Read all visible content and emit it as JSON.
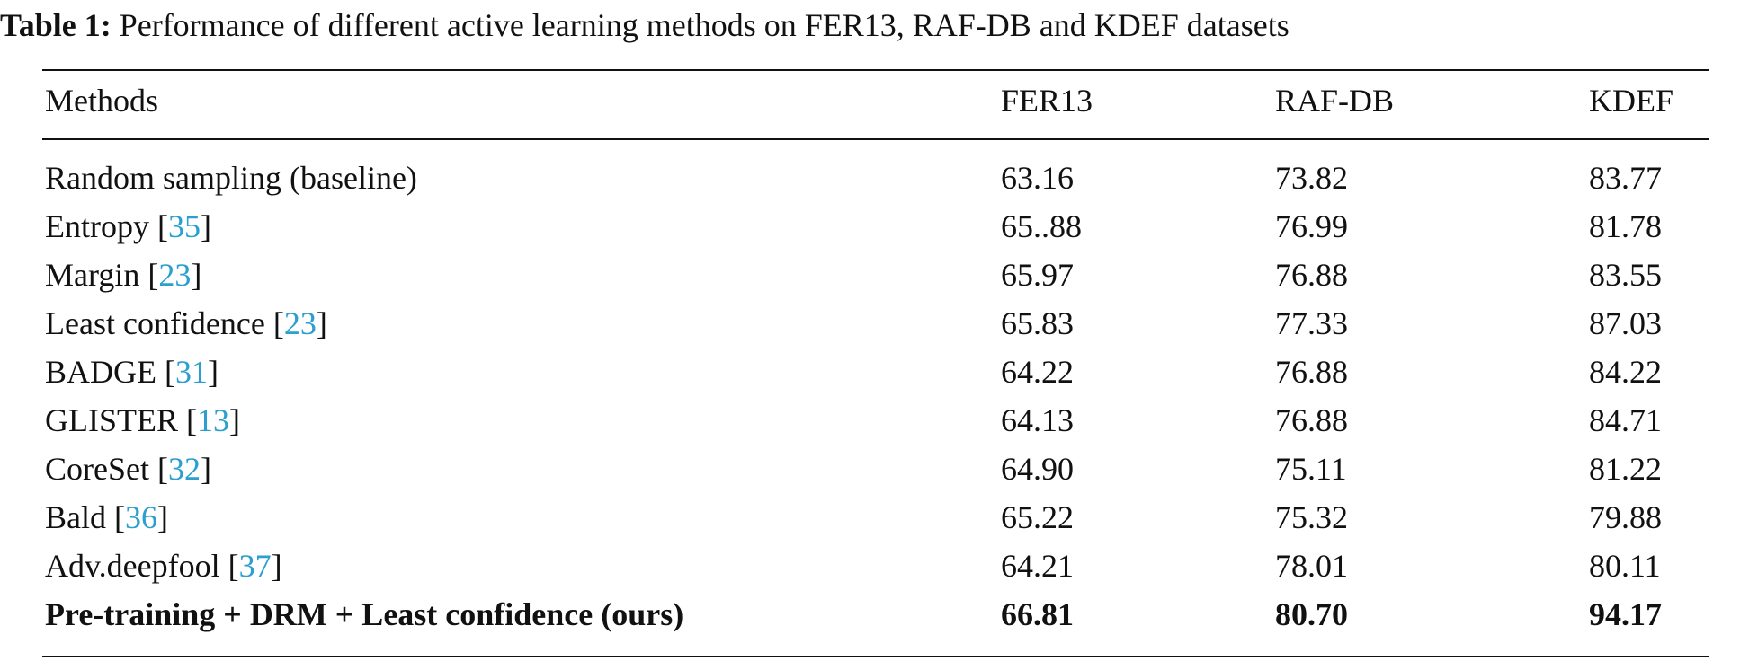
{
  "caption": {
    "label": "Table 1:",
    "text": "Performance of different active learning methods on FER13, RAF-DB and KDEF datasets"
  },
  "table": {
    "header": [
      "Methods",
      "FER13",
      "RAF-DB",
      "KDEF"
    ],
    "rows": [
      {
        "method": "Random sampling (baseline)",
        "values": [
          "63.16",
          "73.82",
          "83.77"
        ]
      },
      {
        "method": "Entropy",
        "cite": "35",
        "values": [
          "65..88",
          "76.99",
          "81.78"
        ]
      },
      {
        "method": "Margin",
        "cite": "23",
        "values": [
          "65.97",
          "76.88",
          "83.55"
        ]
      },
      {
        "method": "Least confidence",
        "cite": "23",
        "values": [
          "65.83",
          "77.33",
          "87.03"
        ]
      },
      {
        "method": "BADGE",
        "cite": "31",
        "values": [
          "64.22",
          "76.88",
          "84.22"
        ]
      },
      {
        "method": "GLISTER",
        "cite": "13",
        "values": [
          "64.13",
          "76.88",
          "84.71"
        ]
      },
      {
        "method": "CoreSet",
        "cite": "32",
        "values": [
          "64.90",
          "75.11",
          "81.22"
        ]
      },
      {
        "method": "Bald",
        "cite": "36",
        "values": [
          "65.22",
          "75.32",
          "79.88"
        ]
      },
      {
        "method": "Adv.deepfool",
        "cite": "37",
        "values": [
          "64.21",
          "78.01",
          "80.11"
        ]
      },
      {
        "method": "Pre-training + DRM + Least confidence (ours)",
        "values": [
          "66.81",
          "80.70",
          "94.17"
        ],
        "bold": true
      }
    ]
  }
}
